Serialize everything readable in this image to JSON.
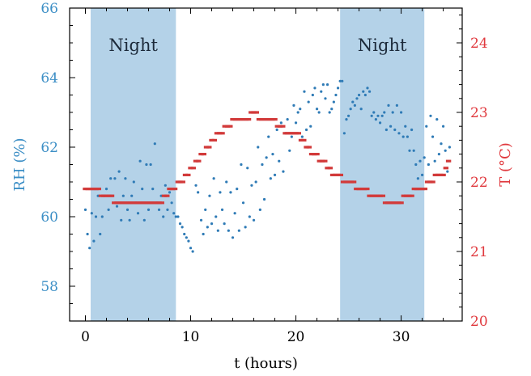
{
  "chart_data": {
    "type": "scatter",
    "xlabel": "t (hours)",
    "ylabel_left": "RH (%)",
    "ylabel_right": "T (°C)",
    "xlim": [
      -1.5,
      35.8
    ],
    "ylim_left": [
      57,
      66
    ],
    "ylim_right": [
      20,
      24.5
    ],
    "x_ticks": [
      0,
      10,
      20,
      30
    ],
    "y_ticks_left": [
      58,
      60,
      62,
      64,
      66
    ],
    "y_ticks_right": [
      20,
      21,
      22,
      23,
      24
    ],
    "colors": {
      "rh": "#2f7bb6",
      "temp": "#d23a3a",
      "left_axis_text": "#3d8fc6",
      "right_axis_text": "#e0393e",
      "night_band": "#b4d2e8"
    },
    "night_bands": [
      {
        "label": "Night",
        "x_start": 0.5,
        "x_end": 8.6
      },
      {
        "label": "Night",
        "x_start": 24.2,
        "x_end": 32.2
      }
    ],
    "series": [
      {
        "axis": "left",
        "marker": "dot",
        "points": [
          [
            0.0,
            60.2
          ],
          [
            0.2,
            59.5
          ],
          [
            0.4,
            59.1
          ],
          [
            0.6,
            60.1
          ],
          [
            0.8,
            59.3
          ],
          [
            1.0,
            60.0
          ],
          [
            1.2,
            60.6
          ],
          [
            1.4,
            59.5
          ],
          [
            1.6,
            60.0
          ],
          [
            1.8,
            60.6
          ],
          [
            2.0,
            60.8
          ],
          [
            2.2,
            60.2
          ],
          [
            2.4,
            61.1
          ],
          [
            2.6,
            60.6
          ],
          [
            2.8,
            61.1
          ],
          [
            3.0,
            60.3
          ],
          [
            3.2,
            61.3
          ],
          [
            3.4,
            59.9
          ],
          [
            3.6,
            60.6
          ],
          [
            3.8,
            61.1
          ],
          [
            4.0,
            60.2
          ],
          [
            4.2,
            59.9
          ],
          [
            4.4,
            60.6
          ],
          [
            4.6,
            61.0
          ],
          [
            4.8,
            60.4
          ],
          [
            5.0,
            60.1
          ],
          [
            5.2,
            61.6
          ],
          [
            5.4,
            60.8
          ],
          [
            5.6,
            59.9
          ],
          [
            5.8,
            61.5
          ],
          [
            6.0,
            60.2
          ],
          [
            6.2,
            61.5
          ],
          [
            6.4,
            60.8
          ],
          [
            6.6,
            62.1
          ],
          [
            6.8,
            60.4
          ],
          [
            7.0,
            60.2
          ],
          [
            7.2,
            60.6
          ],
          [
            7.4,
            60.0
          ],
          [
            7.6,
            60.9
          ],
          [
            7.8,
            60.2
          ],
          [
            8.0,
            60.7
          ],
          [
            8.2,
            60.4
          ],
          [
            8.4,
            60.1
          ],
          [
            8.6,
            60.0
          ],
          [
            8.8,
            60.0
          ],
          [
            9.0,
            59.8
          ],
          [
            9.2,
            59.7
          ],
          [
            9.4,
            59.5
          ],
          [
            9.6,
            59.4
          ],
          [
            9.8,
            59.3
          ],
          [
            10.0,
            59.1
          ],
          [
            10.2,
            59.0
          ],
          [
            10.5,
            60.9
          ],
          [
            10.7,
            60.7
          ],
          [
            11.0,
            59.9
          ],
          [
            11.2,
            59.5
          ],
          [
            11.4,
            60.2
          ],
          [
            11.6,
            59.7
          ],
          [
            11.8,
            60.6
          ],
          [
            12.0,
            59.8
          ],
          [
            12.2,
            61.1
          ],
          [
            12.4,
            60.0
          ],
          [
            12.6,
            59.6
          ],
          [
            12.8,
            60.7
          ],
          [
            13.0,
            60.2
          ],
          [
            13.2,
            59.8
          ],
          [
            13.4,
            61.0
          ],
          [
            13.6,
            59.6
          ],
          [
            13.8,
            60.7
          ],
          [
            14.0,
            59.4
          ],
          [
            14.2,
            60.1
          ],
          [
            14.4,
            60.8
          ],
          [
            14.6,
            59.6
          ],
          [
            14.8,
            61.5
          ],
          [
            15.0,
            60.4
          ],
          [
            15.2,
            59.7
          ],
          [
            15.4,
            61.4
          ],
          [
            15.6,
            60.0
          ],
          [
            15.8,
            60.9
          ],
          [
            16.0,
            59.9
          ],
          [
            16.2,
            61.0
          ],
          [
            16.4,
            62.0
          ],
          [
            16.6,
            60.2
          ],
          [
            16.8,
            61.5
          ],
          [
            17.0,
            60.5
          ],
          [
            17.2,
            61.7
          ],
          [
            17.4,
            62.3
          ],
          [
            17.6,
            61.1
          ],
          [
            17.8,
            61.8
          ],
          [
            18.0,
            61.2
          ],
          [
            18.2,
            62.5
          ],
          [
            18.4,
            61.6
          ],
          [
            18.6,
            62.7
          ],
          [
            18.8,
            61.3
          ],
          [
            19.0,
            62.4
          ],
          [
            19.2,
            62.8
          ],
          [
            19.4,
            61.9
          ],
          [
            19.6,
            62.3
          ],
          [
            19.8,
            63.2
          ],
          [
            20.0,
            62.7
          ],
          [
            20.2,
            63.0
          ],
          [
            20.4,
            63.1
          ],
          [
            20.6,
            62.3
          ],
          [
            20.8,
            63.6
          ],
          [
            21.0,
            62.5
          ],
          [
            21.2,
            63.3
          ],
          [
            21.4,
            62.6
          ],
          [
            21.6,
            63.5
          ],
          [
            21.8,
            63.7
          ],
          [
            22.0,
            63.1
          ],
          [
            22.2,
            63.0
          ],
          [
            22.4,
            63.6
          ],
          [
            22.6,
            63.8
          ],
          [
            22.8,
            63.4
          ],
          [
            23.0,
            63.8
          ],
          [
            23.2,
            63.0
          ],
          [
            23.4,
            63.1
          ],
          [
            23.6,
            63.3
          ],
          [
            23.8,
            63.5
          ],
          [
            24.0,
            63.7
          ],
          [
            24.2,
            63.9
          ],
          [
            24.4,
            63.9
          ],
          [
            24.6,
            62.4
          ],
          [
            24.8,
            62.8
          ],
          [
            25.0,
            62.9
          ],
          [
            25.2,
            63.1
          ],
          [
            25.4,
            63.3
          ],
          [
            25.6,
            63.2
          ],
          [
            25.8,
            63.4
          ],
          [
            26.0,
            63.5
          ],
          [
            26.2,
            63.1
          ],
          [
            26.4,
            63.6
          ],
          [
            26.6,
            63.5
          ],
          [
            26.8,
            63.7
          ],
          [
            27.0,
            63.6
          ],
          [
            27.2,
            62.9
          ],
          [
            27.4,
            63.0
          ],
          [
            27.6,
            62.8
          ],
          [
            27.8,
            62.9
          ],
          [
            28.0,
            62.7
          ],
          [
            28.2,
            62.9
          ],
          [
            28.4,
            63.0
          ],
          [
            28.6,
            62.5
          ],
          [
            28.8,
            63.2
          ],
          [
            29.0,
            62.6
          ],
          [
            29.2,
            63.0
          ],
          [
            29.4,
            62.5
          ],
          [
            29.6,
            63.2
          ],
          [
            29.8,
            62.4
          ],
          [
            30.0,
            63.0
          ],
          [
            30.2,
            62.3
          ],
          [
            30.4,
            62.6
          ],
          [
            30.6,
            62.3
          ],
          [
            30.8,
            61.9
          ],
          [
            31.0,
            62.5
          ],
          [
            31.2,
            61.9
          ],
          [
            31.4,
            61.5
          ],
          [
            31.6,
            61.1
          ],
          [
            31.8,
            61.6
          ],
          [
            32.0,
            61.2
          ],
          [
            32.2,
            61.7
          ],
          [
            32.4,
            62.6
          ],
          [
            32.6,
            61.5
          ],
          [
            32.8,
            62.9
          ],
          [
            33.0,
            62.3
          ],
          [
            33.2,
            61.6
          ],
          [
            33.4,
            62.8
          ],
          [
            33.6,
            61.8
          ],
          [
            33.8,
            62.1
          ],
          [
            34.0,
            62.6
          ],
          [
            34.2,
            61.9
          ],
          [
            34.4,
            61.3
          ],
          [
            34.6,
            62.0
          ]
        ]
      },
      {
        "axis": "right",
        "marker": "dash",
        "points": [
          [
            0.0,
            21.9
          ],
          [
            0.25,
            21.9
          ],
          [
            0.5,
            21.9
          ],
          [
            0.75,
            21.9
          ],
          [
            1.0,
            21.9
          ],
          [
            1.25,
            21.9
          ],
          [
            1.5,
            21.8
          ],
          [
            1.75,
            21.8
          ],
          [
            2.0,
            21.8
          ],
          [
            2.25,
            21.8
          ],
          [
            2.5,
            21.8
          ],
          [
            2.75,
            21.7
          ],
          [
            3.0,
            21.7
          ],
          [
            3.25,
            21.7
          ],
          [
            3.5,
            21.7
          ],
          [
            3.75,
            21.7
          ],
          [
            4.0,
            21.7
          ],
          [
            4.25,
            21.7
          ],
          [
            4.5,
            21.7
          ],
          [
            4.75,
            21.7
          ],
          [
            5.0,
            21.7
          ],
          [
            5.25,
            21.7
          ],
          [
            5.5,
            21.7
          ],
          [
            5.75,
            21.7
          ],
          [
            6.0,
            21.7
          ],
          [
            6.25,
            21.7
          ],
          [
            6.5,
            21.7
          ],
          [
            6.75,
            21.7
          ],
          [
            7.0,
            21.7
          ],
          [
            7.25,
            21.7
          ],
          [
            7.5,
            21.8
          ],
          [
            7.75,
            21.8
          ],
          [
            8.0,
            21.9
          ],
          [
            8.25,
            21.9
          ],
          [
            8.5,
            21.9
          ],
          [
            8.8,
            22.0
          ],
          [
            9.0,
            22.0
          ],
          [
            9.25,
            22.0
          ],
          [
            9.5,
            22.1
          ],
          [
            9.75,
            22.1
          ],
          [
            10.0,
            22.2
          ],
          [
            10.25,
            22.2
          ],
          [
            10.5,
            22.3
          ],
          [
            10.75,
            22.3
          ],
          [
            11.0,
            22.4
          ],
          [
            11.25,
            22.4
          ],
          [
            11.5,
            22.5
          ],
          [
            11.75,
            22.5
          ],
          [
            12.0,
            22.6
          ],
          [
            12.25,
            22.6
          ],
          [
            12.5,
            22.7
          ],
          [
            12.75,
            22.7
          ],
          [
            13.0,
            22.7
          ],
          [
            13.25,
            22.8
          ],
          [
            13.5,
            22.8
          ],
          [
            13.75,
            22.8
          ],
          [
            14.0,
            22.9
          ],
          [
            14.25,
            22.9
          ],
          [
            14.5,
            22.9
          ],
          [
            14.75,
            22.9
          ],
          [
            15.0,
            22.9
          ],
          [
            15.25,
            22.9
          ],
          [
            15.5,
            22.9
          ],
          [
            15.75,
            23.0
          ],
          [
            16.0,
            23.0
          ],
          [
            16.25,
            23.0
          ],
          [
            16.5,
            22.9
          ],
          [
            16.75,
            22.9
          ],
          [
            17.0,
            22.9
          ],
          [
            17.25,
            22.9
          ],
          [
            17.5,
            22.9
          ],
          [
            17.75,
            22.9
          ],
          [
            18.0,
            22.9
          ],
          [
            18.25,
            22.8
          ],
          [
            18.5,
            22.8
          ],
          [
            18.75,
            22.8
          ],
          [
            19.0,
            22.7
          ],
          [
            19.25,
            22.7
          ],
          [
            19.5,
            22.7
          ],
          [
            19.75,
            22.7
          ],
          [
            20.0,
            22.7
          ],
          [
            20.25,
            22.7
          ],
          [
            20.5,
            22.6
          ],
          [
            20.75,
            22.6
          ],
          [
            21.0,
            22.5
          ],
          [
            21.25,
            22.5
          ],
          [
            21.5,
            22.4
          ],
          [
            21.75,
            22.4
          ],
          [
            22.0,
            22.4
          ],
          [
            22.25,
            22.3
          ],
          [
            22.5,
            22.3
          ],
          [
            22.75,
            22.3
          ],
          [
            23.0,
            22.2
          ],
          [
            23.25,
            22.2
          ],
          [
            23.5,
            22.1
          ],
          [
            23.75,
            22.1
          ],
          [
            24.0,
            22.1
          ],
          [
            24.25,
            22.1
          ],
          [
            24.5,
            22.0
          ],
          [
            24.75,
            22.0
          ],
          [
            25.0,
            22.0
          ],
          [
            25.25,
            22.0
          ],
          [
            25.5,
            22.0
          ],
          [
            25.75,
            21.9
          ],
          [
            26.0,
            21.9
          ],
          [
            26.25,
            21.9
          ],
          [
            26.5,
            21.9
          ],
          [
            26.75,
            21.9
          ],
          [
            27.0,
            21.8
          ],
          [
            27.25,
            21.8
          ],
          [
            27.5,
            21.8
          ],
          [
            27.75,
            21.8
          ],
          [
            28.0,
            21.8
          ],
          [
            28.25,
            21.8
          ],
          [
            28.5,
            21.7
          ],
          [
            28.75,
            21.7
          ],
          [
            29.0,
            21.7
          ],
          [
            29.25,
            21.7
          ],
          [
            29.5,
            21.7
          ],
          [
            29.75,
            21.7
          ],
          [
            30.0,
            21.7
          ],
          [
            30.25,
            21.8
          ],
          [
            30.5,
            21.8
          ],
          [
            30.75,
            21.8
          ],
          [
            31.0,
            21.8
          ],
          [
            31.25,
            21.9
          ],
          [
            31.5,
            21.9
          ],
          [
            31.75,
            21.9
          ],
          [
            32.0,
            21.9
          ],
          [
            32.25,
            21.9
          ],
          [
            32.5,
            22.0
          ],
          [
            32.75,
            22.0
          ],
          [
            33.0,
            22.0
          ],
          [
            33.25,
            22.1
          ],
          [
            33.5,
            22.1
          ],
          [
            33.75,
            22.1
          ],
          [
            34.0,
            22.1
          ],
          [
            34.25,
            22.2
          ],
          [
            34.5,
            22.3
          ]
        ]
      }
    ]
  }
}
